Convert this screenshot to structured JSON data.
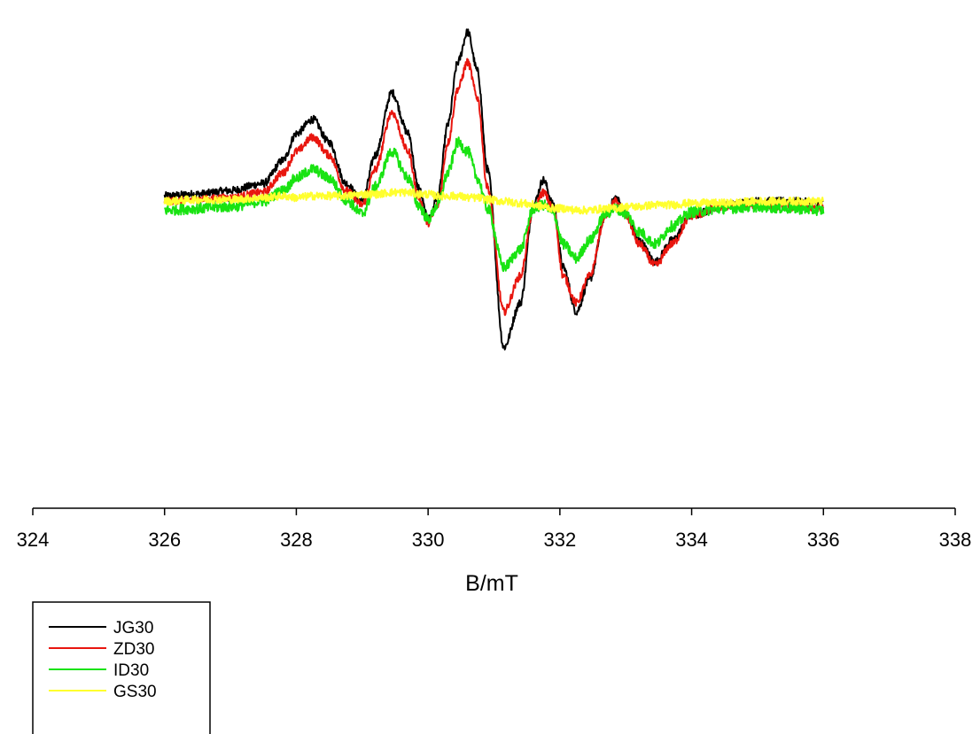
{
  "chart_data": {
    "type": "line",
    "title": "",
    "xlabel": "B/mT",
    "ylabel": "",
    "xlim": [
      324,
      338
    ],
    "xticks": [
      324,
      326,
      328,
      330,
      332,
      334,
      336,
      338
    ],
    "ylim": [
      -1.25,
      1.05
    ],
    "grid": false,
    "legend_position": "bottom-left",
    "x": [
      326.0,
      326.5,
      327.0,
      327.5,
      327.8,
      328.0,
      328.25,
      328.5,
      328.75,
      329.0,
      329.2,
      329.45,
      329.7,
      329.85,
      330.0,
      330.15,
      330.3,
      330.45,
      330.6,
      330.75,
      330.9,
      331.15,
      331.4,
      331.6,
      331.75,
      331.9,
      332.05,
      332.25,
      332.45,
      332.7,
      332.85,
      333.0,
      333.2,
      333.45,
      333.7,
      334.0,
      334.5,
      335.0,
      335.5,
      336.0
    ],
    "series": [
      {
        "name": "JG30",
        "color": "#000000",
        "values": [
          0.05,
          0.06,
          0.08,
          0.12,
          0.25,
          0.4,
          0.48,
          0.35,
          0.12,
          0.02,
          0.28,
          0.63,
          0.4,
          0.1,
          -0.08,
          0.05,
          0.45,
          0.8,
          0.97,
          0.75,
          0.2,
          -0.8,
          -0.55,
          0.0,
          0.14,
          0.0,
          -0.35,
          -0.6,
          -0.42,
          -0.05,
          0.04,
          -0.05,
          -0.2,
          -0.32,
          -0.2,
          -0.06,
          0.0,
          0.02,
          0.02,
          0.01
        ]
      },
      {
        "name": "ZD30",
        "color": "#e8160f",
        "values": [
          0.02,
          0.03,
          0.04,
          0.07,
          0.18,
          0.3,
          0.38,
          0.28,
          0.08,
          0.0,
          0.2,
          0.52,
          0.3,
          0.05,
          -0.1,
          0.0,
          0.35,
          0.65,
          0.8,
          0.6,
          0.1,
          -0.6,
          -0.4,
          -0.02,
          0.07,
          -0.02,
          -0.4,
          -0.55,
          -0.4,
          -0.05,
          0.02,
          -0.06,
          -0.22,
          -0.34,
          -0.22,
          -0.06,
          -0.01,
          0.0,
          -0.01,
          -0.02
        ]
      },
      {
        "name": "ID30",
        "color": "#19e312",
        "values": [
          -0.03,
          -0.02,
          -0.01,
          0.02,
          0.08,
          0.15,
          0.2,
          0.15,
          0.03,
          -0.05,
          0.1,
          0.3,
          0.15,
          0.0,
          -0.08,
          0.0,
          0.18,
          0.35,
          0.3,
          0.15,
          -0.02,
          -0.35,
          -0.25,
          -0.02,
          0.0,
          -0.05,
          -0.22,
          -0.3,
          -0.2,
          -0.05,
          -0.02,
          -0.05,
          -0.15,
          -0.22,
          -0.12,
          -0.04,
          -0.02,
          -0.01,
          -0.02,
          -0.03
        ]
      },
      {
        "name": "GS30",
        "color": "#ffff2e",
        "values": [
          0.02,
          0.03,
          0.03,
          0.04,
          0.05,
          0.04,
          0.05,
          0.05,
          0.05,
          0.06,
          0.06,
          0.07,
          0.07,
          0.06,
          0.06,
          0.05,
          0.05,
          0.05,
          0.04,
          0.04,
          0.03,
          0.02,
          0.01,
          0.0,
          -0.01,
          -0.02,
          -0.02,
          -0.03,
          -0.03,
          -0.02,
          -0.02,
          -0.01,
          -0.01,
          0.0,
          0.0,
          0.01,
          0.01,
          0.02,
          0.02,
          0.02
        ]
      }
    ]
  }
}
